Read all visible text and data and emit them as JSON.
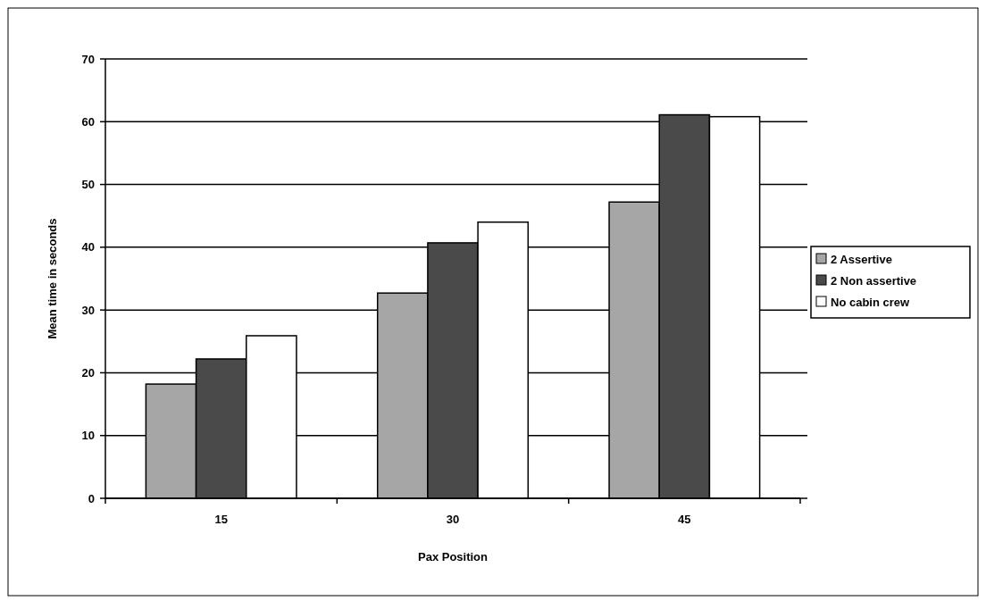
{
  "chart_data": {
    "type": "bar",
    "xlabel": "Pax Position",
    "ylabel": "Mean time in seconds",
    "categories": [
      "15",
      "30",
      "45"
    ],
    "series": [
      {
        "name": "2 Assertive",
        "color": "#a6a6a6",
        "values": [
          18.2,
          32.7,
          47.2
        ]
      },
      {
        "name": "2 Non assertive",
        "color": "#4a4a4a",
        "values": [
          22.2,
          40.7,
          61.1
        ]
      },
      {
        "name": "No cabin crew",
        "color": "#ffffff",
        "values": [
          25.9,
          44.0,
          60.8
        ]
      }
    ],
    "ylim": [
      0,
      70
    ],
    "yticks": [
      0,
      10,
      20,
      30,
      40,
      50,
      60,
      70
    ],
    "grid": "y",
    "legend": "right"
  }
}
